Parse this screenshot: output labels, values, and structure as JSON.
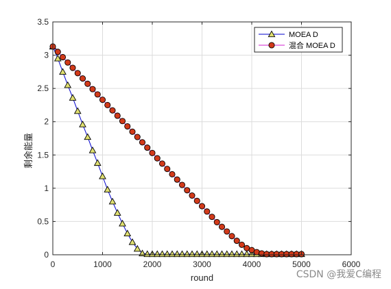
{
  "chart_data": {
    "type": "line",
    "xlabel": "round",
    "ylabel": "剩余能量",
    "xlim": [
      0,
      6000
    ],
    "ylim": [
      0,
      3.5
    ],
    "xticks": [
      0,
      1000,
      2000,
      3000,
      4000,
      5000,
      6000
    ],
    "yticks": [
      0,
      0.5,
      1,
      1.5,
      2,
      2.5,
      3,
      3.5
    ],
    "xtick_labels": [
      "0",
      "1000",
      "2000",
      "3000",
      "4000",
      "5000",
      "6000"
    ],
    "ytick_labels": [
      "0",
      "0.5",
      "1",
      "1.5",
      "2",
      "2.5",
      "3",
      "3.5"
    ],
    "grid": true,
    "legend_position": "top-right",
    "series": [
      {
        "name": "MOEA D",
        "line_color": "#0000cc",
        "marker": "triangle",
        "marker_fill": "#e0e070",
        "x": [
          0,
          100,
          200,
          300,
          400,
          500,
          600,
          700,
          800,
          900,
          1000,
          1100,
          1200,
          1300,
          1400,
          1500,
          1600,
          1700,
          1800,
          1900,
          2000,
          2100,
          2200,
          2300,
          2400,
          2500,
          2600,
          2700,
          2800,
          2900,
          3000,
          3100,
          3200,
          3300,
          3400,
          3500,
          3600,
          3700,
          3800,
          3900,
          4000,
          4100,
          4200,
          4300,
          4400,
          4500,
          4600,
          4700,
          4800,
          4900,
          5000
        ],
        "y": [
          3.13,
          2.95,
          2.75,
          2.55,
          2.36,
          2.16,
          1.96,
          1.77,
          1.57,
          1.38,
          1.18,
          0.98,
          0.8,
          0.63,
          0.47,
          0.32,
          0.19,
          0.09,
          0.02,
          0.01,
          0.01,
          0.01,
          0.01,
          0.01,
          0.01,
          0.01,
          0.01,
          0.01,
          0.01,
          0.01,
          0.01,
          0.01,
          0.01,
          0.01,
          0.01,
          0.01,
          0.01,
          0.01,
          0.01,
          0.01,
          0.01,
          0.01,
          0.01,
          0.01,
          0.01,
          0.01,
          0.01,
          0.01,
          0.01,
          0.01,
          0.01
        ]
      },
      {
        "name": "混合 MOEA D",
        "line_color": "#d020d0",
        "marker": "circle",
        "marker_fill": "#d23a1a",
        "x": [
          0,
          100,
          200,
          300,
          400,
          500,
          600,
          700,
          800,
          900,
          1000,
          1100,
          1200,
          1300,
          1400,
          1500,
          1600,
          1700,
          1800,
          1900,
          2000,
          2100,
          2200,
          2300,
          2400,
          2500,
          2600,
          2700,
          2800,
          2900,
          3000,
          3100,
          3200,
          3300,
          3400,
          3500,
          3600,
          3700,
          3800,
          3900,
          4000,
          4100,
          4200,
          4300,
          4400,
          4500,
          4600,
          4700,
          4800,
          4900,
          5000
        ],
        "y": [
          3.13,
          3.05,
          2.97,
          2.89,
          2.81,
          2.73,
          2.65,
          2.57,
          2.49,
          2.41,
          2.33,
          2.25,
          2.17,
          2.09,
          2.01,
          1.93,
          1.85,
          1.77,
          1.69,
          1.61,
          1.53,
          1.45,
          1.37,
          1.29,
          1.21,
          1.13,
          1.05,
          0.97,
          0.89,
          0.81,
          0.73,
          0.65,
          0.57,
          0.49,
          0.42,
          0.35,
          0.28,
          0.21,
          0.15,
          0.1,
          0.07,
          0.04,
          0.02,
          0.01,
          0.01,
          0.01,
          0.01,
          0.01,
          0.01,
          0.01,
          0.01
        ]
      }
    ]
  },
  "watermark": "CSDN @我爱C编程"
}
